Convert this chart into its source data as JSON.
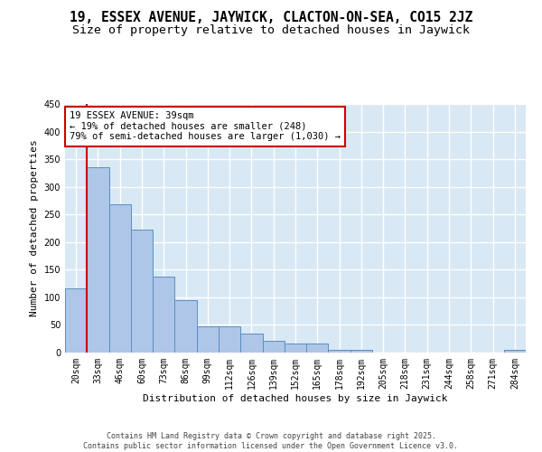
{
  "title1": "19, ESSEX AVENUE, JAYWICK, CLACTON-ON-SEA, CO15 2JZ",
  "title2": "Size of property relative to detached houses in Jaywick",
  "xlabel": "Distribution of detached houses by size in Jaywick",
  "ylabel": "Number of detached properties",
  "categories": [
    "20sqm",
    "33sqm",
    "46sqm",
    "60sqm",
    "73sqm",
    "86sqm",
    "99sqm",
    "112sqm",
    "126sqm",
    "139sqm",
    "152sqm",
    "165sqm",
    "178sqm",
    "192sqm",
    "205sqm",
    "218sqm",
    "231sqm",
    "244sqm",
    "258sqm",
    "271sqm",
    "284sqm"
  ],
  "values": [
    117,
    335,
    268,
    222,
    138,
    95,
    47,
    47,
    35,
    22,
    17,
    17,
    5,
    5,
    0,
    0,
    0,
    0,
    0,
    0,
    5
  ],
  "bar_color": "#aec6e8",
  "bar_edge_color": "#5a8fc0",
  "bg_color": "#d9e8f5",
  "grid_color": "#ffffff",
  "annotation_text": "19 ESSEX AVENUE: 39sqm\n← 19% of detached houses are smaller (248)\n79% of semi-detached houses are larger (1,030) →",
  "annotation_box_color": "#ffffff",
  "annotation_border_color": "#cc0000",
  "vline_color": "#cc0000",
  "vline_x_bar": 0,
  "ylim": [
    0,
    450
  ],
  "yticks": [
    0,
    50,
    100,
    150,
    200,
    250,
    300,
    350,
    400,
    450
  ],
  "footer": "Contains HM Land Registry data © Crown copyright and database right 2025.\nContains public sector information licensed under the Open Government Licence v3.0.",
  "title_fontsize": 10.5,
  "subtitle_fontsize": 9.5,
  "tick_fontsize": 7,
  "label_fontsize": 8,
  "annotation_fontsize": 7.5,
  "footer_fontsize": 6
}
